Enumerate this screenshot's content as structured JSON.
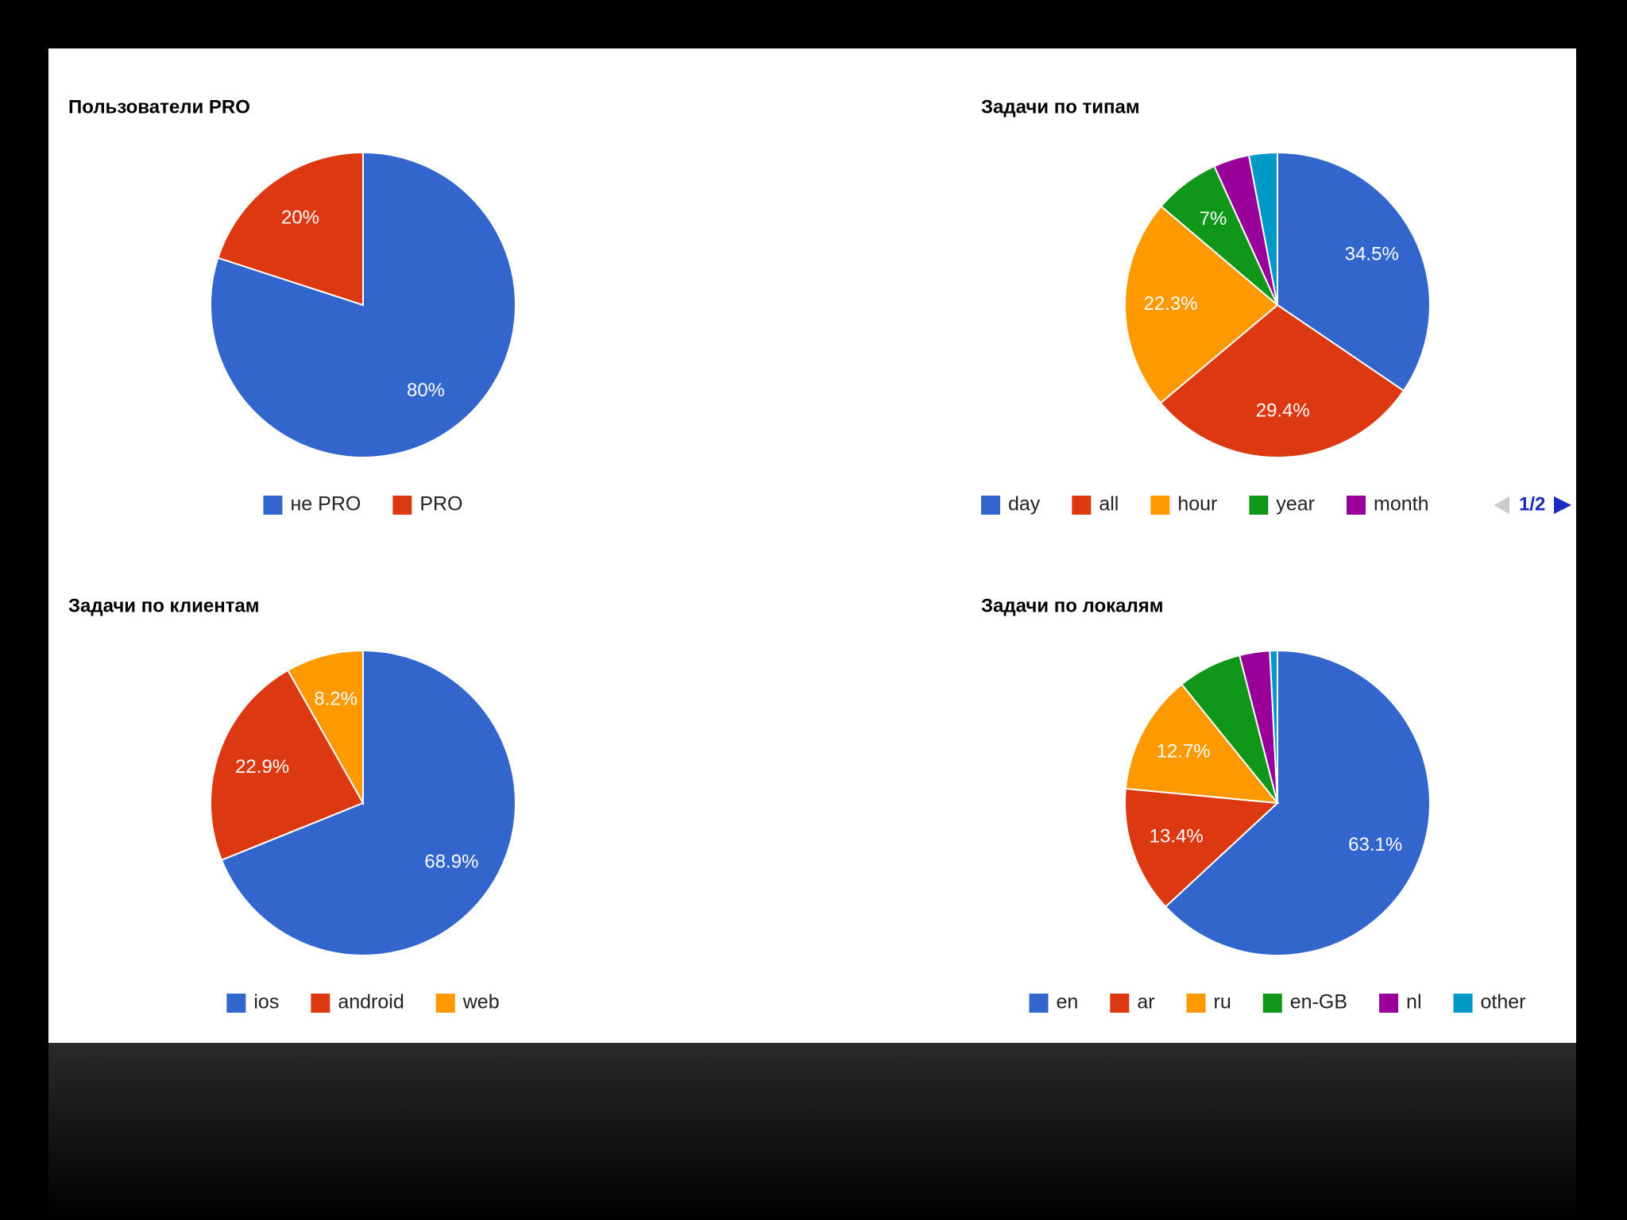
{
  "chart_data": [
    {
      "type": "pie",
      "title": "Пользователи PRO",
      "categories": [
        "не PRO",
        "PRO"
      ],
      "values": [
        80,
        20
      ],
      "value_labels": [
        "80%",
        "20%"
      ],
      "colors": [
        "#3366cc",
        "#dc3912"
      ]
    },
    {
      "type": "pie",
      "title": "Задачи по типам",
      "categories": [
        "day",
        "all",
        "hour",
        "year",
        "month",
        null
      ],
      "values": [
        34.5,
        29.4,
        22.3,
        7,
        3.8,
        3
      ],
      "value_labels": [
        "34.5%",
        "29.4%",
        "22.3%",
        "7%",
        null,
        null
      ],
      "colors": [
        "#3366cc",
        "#dc3912",
        "#ff9900",
        "#109618",
        "#990099",
        "#0099c6"
      ],
      "legend_page": "1/2"
    },
    {
      "type": "pie",
      "title": "Задачи по клиентам",
      "categories": [
        "ios",
        "android",
        "web"
      ],
      "values": [
        68.9,
        22.9,
        8.2
      ],
      "value_labels": [
        "68.9%",
        "22.9%",
        "8.2%"
      ],
      "colors": [
        "#3366cc",
        "#dc3912",
        "#ff9900"
      ]
    },
    {
      "type": "pie",
      "title": "Задачи по локалям",
      "categories": [
        "en",
        "ar",
        "ru",
        "en-GB",
        "nl",
        "other"
      ],
      "values": [
        63.1,
        13.4,
        12.7,
        6.8,
        3.2,
        0.8
      ],
      "value_labels": [
        "63.1%",
        "13.4%",
        "12.7%",
        null,
        null,
        null
      ],
      "colors": [
        "#3366cc",
        "#dc3912",
        "#ff9900",
        "#109618",
        "#990099",
        "#0099c6"
      ]
    }
  ]
}
